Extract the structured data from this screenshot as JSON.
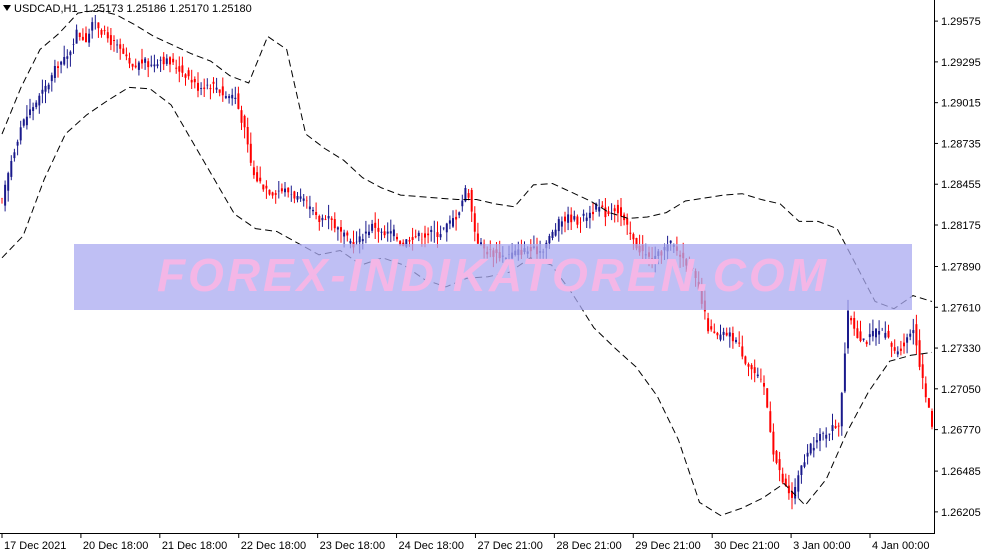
{
  "header": {
    "symbol": "USDCAD,H1",
    "ohlc": "1.25173 1.25186 1.25170 1.25180"
  },
  "watermark": "FOREX-INDIKATOREN.COM",
  "colors": {
    "candle_up": "#1a1a8c",
    "candle_down": "#ff0000",
    "bands": "#000000",
    "watermark_box": "#aaaaf0",
    "watermark_text": "#f4b6e6"
  },
  "chart_data": {
    "type": "line",
    "title": "",
    "xlabel": "",
    "ylabel": "",
    "x_ticks": [
      "17 Dec 2021",
      "20 Dec 18:00",
      "21 Dec 18:00",
      "22 Dec 18:00",
      "23 Dec 18:00",
      "24 Dec 18:00",
      "27 Dec 21:00",
      "28 Dec 21:00",
      "29 Dec 21:00",
      "30 Dec 21:00",
      "3 Jan 00:00",
      "4 Jan 00:00"
    ],
    "y_ticks": [
      "1.29575",
      "1.29295",
      "1.29015",
      "1.28735",
      "1.28455",
      "1.28175",
      "1.27890",
      "1.27610",
      "1.27330",
      "1.27050",
      "1.26770",
      "1.26485",
      "1.26205"
    ],
    "ylim": [
      1.2606,
      1.2972
    ],
    "series": [
      {
        "kind": "price",
        "values": [
          1.2833,
          1.2862,
          1.2885,
          1.2896,
          1.2905,
          1.2915,
          1.2928,
          1.2932,
          1.295,
          1.2945,
          1.2958,
          1.2948,
          1.2942,
          1.2935,
          1.2924,
          1.293,
          1.2927,
          1.2932,
          1.2929,
          1.2925,
          1.292,
          1.2912,
          1.2914,
          1.2913,
          1.2906,
          1.2907,
          1.2885,
          1.2852,
          1.2845,
          1.284,
          1.2842,
          1.284,
          1.2835,
          1.283,
          1.282,
          1.2825,
          1.2815,
          1.2808,
          1.2804,
          1.2812,
          1.2818,
          1.281,
          1.2813,
          1.2804,
          1.281,
          1.281,
          1.2812,
          1.2812,
          1.2818,
          1.2825,
          1.2845,
          1.2808,
          1.28,
          1.2798,
          1.2796,
          1.2798,
          1.28,
          1.28,
          1.28,
          1.281,
          1.282,
          1.2823,
          1.282,
          1.2825,
          1.283,
          1.2825,
          1.283,
          1.2818,
          1.2805,
          1.2798,
          1.2792,
          1.28,
          1.2805,
          1.2796,
          1.279,
          1.277,
          1.2745,
          1.274,
          1.2743,
          1.2738,
          1.2724,
          1.2715,
          1.2705,
          1.266,
          1.264,
          1.263,
          1.2652,
          1.2665,
          1.2672,
          1.2677,
          1.2681,
          1.2758,
          1.2742,
          1.2738,
          1.2745,
          1.2742,
          1.273,
          1.2736,
          1.2748,
          1.271,
          1.268
        ]
      },
      {
        "kind": "upper_band",
        "values": [
          1.288,
          1.2912,
          1.2938,
          1.2949,
          1.2963,
          1.2965,
          1.2962,
          1.2955,
          1.2947,
          1.2941,
          1.2935,
          1.293,
          1.292,
          1.2915,
          1.2947,
          1.2938,
          1.288,
          1.287,
          1.2862,
          1.285,
          1.2843,
          1.2838,
          1.2837,
          1.2836,
          1.2835,
          1.2835,
          1.2832,
          1.283,
          1.2845,
          1.2846,
          1.284,
          1.2834,
          1.2826,
          1.2822,
          1.2823,
          1.2826,
          1.2834,
          1.2836,
          1.2838,
          1.2839,
          1.2835,
          1.2832,
          1.282,
          1.282,
          1.2815,
          1.279,
          1.2765,
          1.276,
          1.2769,
          1.2765
        ]
      },
      {
        "kind": "lower_band",
        "values": [
          1.2795,
          1.281,
          1.2849,
          1.288,
          1.2893,
          1.2903,
          1.2912,
          1.2911,
          1.29,
          1.2875,
          1.285,
          1.2825,
          1.2815,
          1.2813,
          1.2805,
          1.2797,
          1.28,
          1.279,
          1.2795,
          1.279,
          1.278,
          1.2775,
          1.2781,
          1.2782,
          1.2785,
          1.2795,
          1.279,
          1.277,
          1.2747,
          1.2733,
          1.272,
          1.27,
          1.267,
          1.2627,
          1.2618,
          1.2623,
          1.263,
          1.264,
          1.2625,
          1.2643,
          1.2676,
          1.2703,
          1.2724,
          1.2728,
          1.273
        ]
      }
    ]
  }
}
